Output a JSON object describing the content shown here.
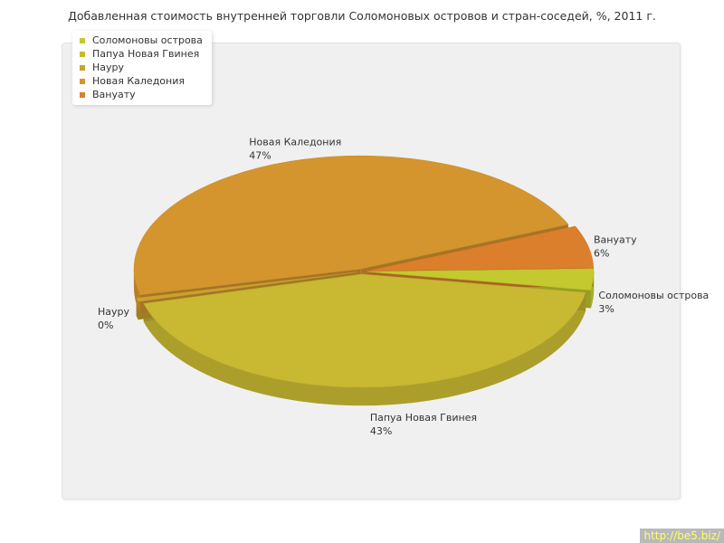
{
  "chart_data": {
    "type": "pie",
    "title": "Добавленная стоимость внутренней торговли Соломоновых островов и стран-соседей, %, 2011 г.",
    "legend_position": "top-left",
    "slices": [
      {
        "name": "Соломоновы острова",
        "value": 3,
        "label": "3%",
        "color": "#c3c92e"
      },
      {
        "name": "Папуа Новая Гвинея",
        "value": 43,
        "label": "43%",
        "color": "#c8b832"
      },
      {
        "name": "Науру",
        "value": 0.5,
        "label": "0%",
        "color": "#cba22e"
      },
      {
        "name": "Новая Каледония",
        "value": 47,
        "label": "47%",
        "color": "#d4952e"
      },
      {
        "name": "Вануату",
        "value": 6,
        "label": "6%",
        "color": "#dc7f2c"
      }
    ]
  },
  "watermark": "http://be5.biz/"
}
